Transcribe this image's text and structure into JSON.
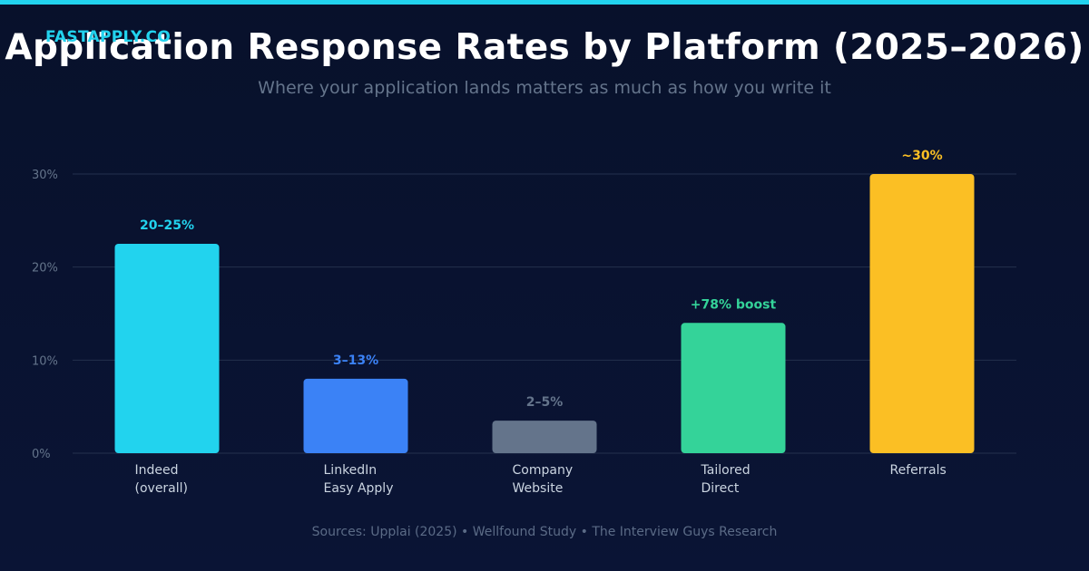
{
  "brand": "FASTAPPLY.CO",
  "title": "Application Response Rates by Platform (2025–2026)",
  "subtitle": "Where your application lands matters as much as how you write it",
  "source": "Sources: Upplai (2025) • Wellfound Study • The Interview Guys Research",
  "colors": {
    "background": "#08112b",
    "accent": "#22d3ee",
    "grid": "#24304d",
    "tick": "#64748b",
    "category_label": "#cbd5e1"
  },
  "chart_data": {
    "type": "bar",
    "title": "Application Response Rates by Platform (2025–2026)",
    "ylim": [
      0,
      30
    ],
    "yticks": [
      {
        "value": 0,
        "label": "0%"
      },
      {
        "value": 10,
        "label": "10%"
      },
      {
        "value": 20,
        "label": "20%"
      },
      {
        "value": 30,
        "label": "30%"
      }
    ],
    "grid": true,
    "categories": [
      [
        "Indeed",
        "(overall)"
      ],
      [
        "LinkedIn",
        "Easy Apply"
      ],
      [
        "Company",
        "Website"
      ],
      [
        "Tailored",
        "Direct"
      ],
      [
        "Referrals"
      ]
    ],
    "values": [
      22.5,
      8,
      3.5,
      14,
      30
    ],
    "data_labels": [
      "20–25%",
      "3–13%",
      "2–5%",
      "+78% boost",
      "~30%"
    ],
    "colors": [
      "#22d3ee",
      "#3b82f6",
      "#64748b",
      "#34d399",
      "#fbbf24"
    ]
  }
}
